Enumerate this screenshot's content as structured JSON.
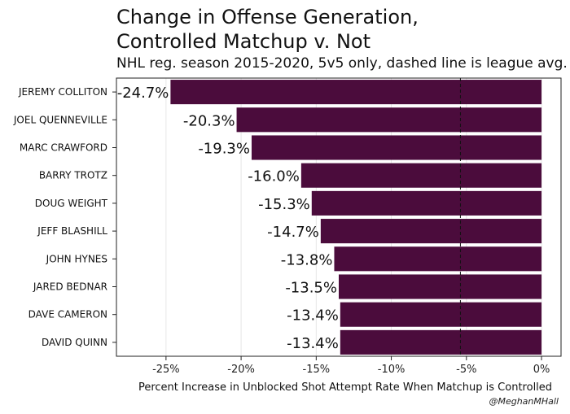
{
  "title_line1": "Change in Offense Generation,",
  "title_line2": "Controlled Matchup v. Not",
  "subtitle": "NHL reg. season 2015-2020, 5v5 only, dashed line is league avg.",
  "credit": "@MeghanMHall",
  "colors": {
    "bar": "#4b0c3c",
    "grid": "#e6e6e6",
    "axis": "#222222"
  },
  "chart_data": {
    "type": "bar",
    "orientation": "horizontal",
    "title": "Change in Offense Generation, Controlled Matchup v. Not",
    "subtitle": "NHL reg. season 2015-2020, 5v5 only, dashed line is league avg.",
    "xlabel": "Percent Increase in Unblocked Shot Attempt Rate When Matchup is Controlled",
    "ylabel": "",
    "categories": [
      "JEREMY COLLITON",
      "JOEL QUENNEVILLE",
      "MARC CRAWFORD",
      "BARRY TROTZ",
      "DOUG WEIGHT",
      "JEFF BLASHILL",
      "JOHN HYNES",
      "JARED BEDNAR",
      "DAVE CAMERON",
      "DAVID QUINN"
    ],
    "values": [
      -24.7,
      -20.3,
      -19.3,
      -16.0,
      -15.3,
      -14.7,
      -13.8,
      -13.5,
      -13.4,
      -13.4
    ],
    "data_labels": [
      "-24.7%",
      "-20.3%",
      "-19.3%",
      "-16.0%",
      "-15.3%",
      "-14.7%",
      "-13.8%",
      "-13.5%",
      "-13.4%",
      "-13.4%"
    ],
    "xlim": [
      -28.3,
      1.3
    ],
    "xticks": [
      -25,
      -20,
      -15,
      -10,
      -5,
      0
    ],
    "xtick_labels": [
      "-25%",
      "-20%",
      "-15%",
      "-10%",
      "-5%",
      "0%"
    ],
    "reference_line": {
      "x": -5.4,
      "style": "dashed"
    },
    "grid": true
  }
}
